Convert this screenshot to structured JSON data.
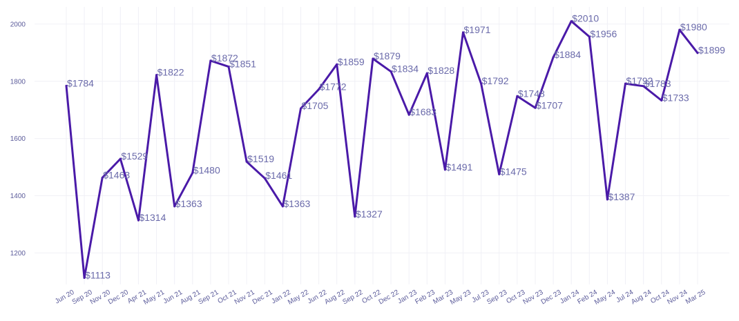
{
  "chart_data": {
    "type": "line",
    "title": "",
    "xlabel": "",
    "ylabel": "",
    "ylim": [
      1090,
      2060
    ],
    "yticks": [
      1200,
      1400,
      1600,
      1800,
      2000
    ],
    "grid": true,
    "legend": "none",
    "series_color": "#4a1aa8",
    "label_prefix": "$",
    "points": [
      {
        "date": "2020-06",
        "value": 1784
      },
      {
        "date": "2020-09",
        "value": 1113
      },
      {
        "date": "2020-11",
        "value": 1463
      },
      {
        "date": "2021-01",
        "value": 1529
      },
      {
        "date": "2021-03",
        "value": 1314
      },
      {
        "date": "2021-05",
        "value": 1822
      },
      {
        "date": "2021-06",
        "value": 1363
      },
      {
        "date": "2021-08",
        "value": 1480
      },
      {
        "date": "2021-10",
        "value": 1872
      },
      {
        "date": "2021-11",
        "value": 1851
      },
      {
        "date": "2022-01",
        "value": 1519
      },
      {
        "date": "2022-03",
        "value": 1461
      },
      {
        "date": "2022-05",
        "value": 1363
      },
      {
        "date": "2022-06",
        "value": 1705
      },
      {
        "date": "2022-08",
        "value": 1772
      },
      {
        "date": "2022-09",
        "value": 1859
      },
      {
        "date": "2022-11",
        "value": 1327
      },
      {
        "date": "2023-01",
        "value": 1879
      },
      {
        "date": "2023-02",
        "value": 1834
      },
      {
        "date": "2023-04",
        "value": 1683
      },
      {
        "date": "2023-06",
        "value": 1828
      },
      {
        "date": "2023-08",
        "value": 1491
      },
      {
        "date": "2023-09",
        "value": 1971
      },
      {
        "date": "2023-11",
        "value": 1792
      },
      {
        "date": "2024-01",
        "value": 1475
      },
      {
        "date": "2024-03",
        "value": 1748
      },
      {
        "date": "2024-04",
        "value": 1707
      },
      {
        "date": "2024-06",
        "value": 1884
      },
      {
        "date": "2024-08",
        "value": 2010
      },
      {
        "date": "2024-09",
        "value": 1956
      },
      {
        "date": "2024-11",
        "value": 1387
      },
      {
        "date": "2025-01",
        "value": 1792
      },
      {
        "date": "2025-02",
        "value": 1783
      },
      {
        "date": "2025-04",
        "value": 1733
      },
      {
        "date": "2025-06",
        "value": 1980
      },
      {
        "date": "2025-07",
        "value": 1899
      }
    ],
    "x_tick_labels": [
      "Jun 20",
      "Sep 20",
      "Nov 20",
      "Dec 20",
      "Apr 21",
      "May 21",
      "Jun 21",
      "Aug 21",
      "Sep 21",
      "Oct 21",
      "Nov 21",
      "Dec 21",
      "Jan 22",
      "May 22",
      "Jun 22",
      "Aug 22",
      "Sep 22",
      "Oct 22",
      "Dec 22",
      "Jan 23",
      "Feb 23",
      "Mar 23",
      "May 23",
      "Jul 23",
      "Sep 23",
      "Oct 23",
      "Nov 23",
      "Dec 23",
      "Jan 24",
      "Feb 24",
      "May 24",
      "Jul 24",
      "Aug 24",
      "Oct 24",
      "Nov 24",
      "Mar 25"
    ]
  }
}
